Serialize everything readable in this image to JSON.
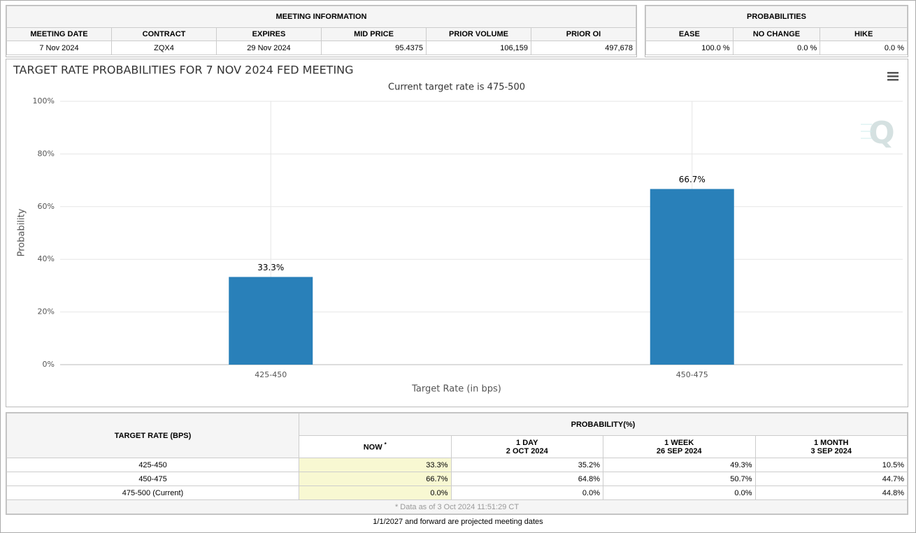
{
  "meeting_info": {
    "title": "MEETING INFORMATION",
    "headers": [
      "MEETING DATE",
      "CONTRACT",
      "EXPIRES",
      "MID PRICE",
      "PRIOR VOLUME",
      "PRIOR OI"
    ],
    "row": [
      "7 Nov 2024",
      "ZQX4",
      "29 Nov 2024",
      "95.4375",
      "106,159",
      "497,678"
    ]
  },
  "probabilities": {
    "title": "PROBABILITIES",
    "headers": [
      "EASE",
      "NO CHANGE",
      "HIKE"
    ],
    "row": [
      "100.0 %",
      "0.0 %",
      "0.0 %"
    ]
  },
  "chart_data": {
    "type": "bar",
    "title": "TARGET RATE PROBABILITIES FOR 7 NOV 2024 FED MEETING",
    "subtitle": "Current target rate is 475-500",
    "x_label": "Target Rate (in bps)",
    "y_label": "Probability",
    "categories": [
      "425-450",
      "450-475"
    ],
    "values": [
      33.3,
      66.7
    ],
    "value_labels": [
      "33.3%",
      "66.7%"
    ],
    "color": "#2980b9",
    "ylim": [
      0,
      100
    ],
    "yticks": [
      {
        "value": 0,
        "label": "0%"
      },
      {
        "value": 20,
        "label": "20%"
      },
      {
        "value": 40,
        "label": "40%"
      },
      {
        "value": 60,
        "label": "60%"
      },
      {
        "value": 80,
        "label": "80%"
      },
      {
        "value": 100,
        "label": "100%"
      }
    ],
    "grid": true
  },
  "prob_table": {
    "header_left": "TARGET RATE (BPS)",
    "header_group": "PROBABILITY(%)",
    "columns": [
      {
        "label": "NOW",
        "note": "*"
      },
      {
        "label": "1 DAY",
        "date": "2 OCT 2024"
      },
      {
        "label": "1 WEEK",
        "date": "26 SEP 2024"
      },
      {
        "label": "1 MONTH",
        "date": "3 SEP 2024"
      }
    ],
    "rows": [
      [
        "425-450",
        "33.3%",
        "35.2%",
        "49.3%",
        "10.5%"
      ],
      [
        "450-475",
        "66.7%",
        "64.8%",
        "50.7%",
        "44.7%"
      ],
      [
        "475-500 (Current)",
        "0.0%",
        "0.0%",
        "0.0%",
        "44.8%"
      ]
    ],
    "footnote": "* Data as of 3 Oct 2024 11:51:29 CT"
  },
  "footer": "1/1/2027 and forward are projected meeting dates"
}
